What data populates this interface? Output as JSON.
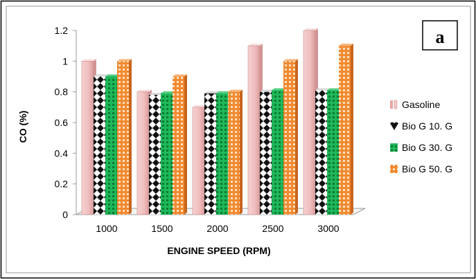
{
  "panel_label": "a",
  "colors": {
    "gasoline_face": "#f2c2c2",
    "gasoline_side": "#d99a9a",
    "bio10_face": "#ffffff",
    "bio10_pattern": "#111111",
    "bio30_face": "#1fb85a",
    "bio30_pattern": "#0b7a34",
    "bio50_face": "#f28a2e",
    "bio50_pattern": "#ffffff",
    "axis": "#888888",
    "text": "#000000"
  },
  "chart_data": {
    "type": "bar",
    "title": "",
    "xlabel": "ENGINE SPEED (RPM)",
    "ylabel": "CO (%)",
    "ylim": [
      0,
      1.2
    ],
    "yticks": [
      "0",
      "0.2",
      "0.4",
      "0.6",
      "0.8",
      "1",
      "1.2"
    ],
    "categories": [
      "1000",
      "1500",
      "2000",
      "2500",
      "3000"
    ],
    "legend_position": "right",
    "grid": false,
    "series": [
      {
        "name": "Gasoline",
        "values": [
          1.0,
          0.8,
          0.7,
          1.1,
          1.2
        ]
      },
      {
        "name": "Bio G 10. G",
        "values": [
          0.9,
          0.78,
          0.79,
          0.8,
          0.81
        ]
      },
      {
        "name": "Bio G 30. G",
        "values": [
          0.9,
          0.79,
          0.79,
          0.81,
          0.81
        ]
      },
      {
        "name": "Bio G 50. G",
        "values": [
          1.0,
          0.9,
          0.8,
          1.0,
          1.1
        ]
      }
    ]
  }
}
